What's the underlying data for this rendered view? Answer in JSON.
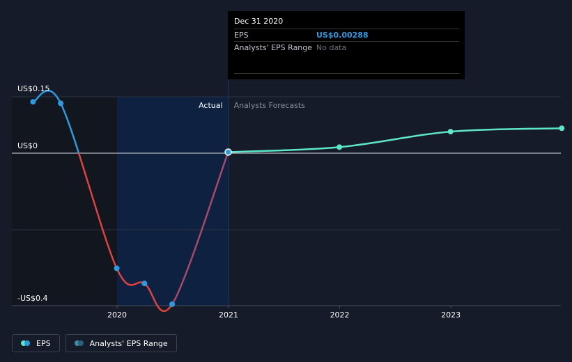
{
  "chart_data": {
    "type": "line",
    "x_ticks": [
      "2020",
      "2021",
      "2022",
      "2023"
    ],
    "y_labels": [
      "US$0.15",
      "US$0",
      "-US$0.4"
    ],
    "ylim": [
      -0.4,
      0.15
    ],
    "region_labels": {
      "actual": "Actual",
      "forecast": "Analysts Forecasts"
    },
    "series": [
      {
        "name": "EPS",
        "kind": "actual",
        "points": [
          {
            "x": "2019-03-31",
            "y": 0.136
          },
          {
            "x": "2019-06-30",
            "y": 0.132
          },
          {
            "x": "2019-12-31",
            "y": -0.305
          },
          {
            "x": "2020-03-31",
            "y": -0.345
          },
          {
            "x": "2020-06-30",
            "y": -0.4
          },
          {
            "x": "2020-12-31",
            "y": 0.00288
          }
        ]
      },
      {
        "name": "EPS",
        "kind": "forecast",
        "points": [
          {
            "x": "2020-12-31",
            "y": 0.00288
          },
          {
            "x": "2021-12-31",
            "y": 0.016
          },
          {
            "x": "2022-12-31",
            "y": 0.057
          },
          {
            "x": "2023-12-31",
            "y": 0.066
          }
        ]
      }
    ],
    "colors": {
      "positive": "#2e9be0",
      "negative": "#e0433f",
      "forecast": "#5ee6c8",
      "recovery": "#a8486a",
      "actual_shade": "#0e2140"
    },
    "grid": true,
    "legend_position": "bottom-left"
  },
  "tooltip": {
    "date": "Dec 31 2020",
    "eps_label": "EPS",
    "eps_value": "US$0.00288",
    "range_label": "Analysts' EPS Range",
    "range_value": "No data"
  },
  "legend": {
    "eps_label": "EPS",
    "range_label": "Analysts' EPS Range",
    "eps_colors": [
      "#5ee6c8",
      "#2e9be0"
    ],
    "range_colors": [
      "#3a8f9c",
      "#2a5d80"
    ]
  }
}
